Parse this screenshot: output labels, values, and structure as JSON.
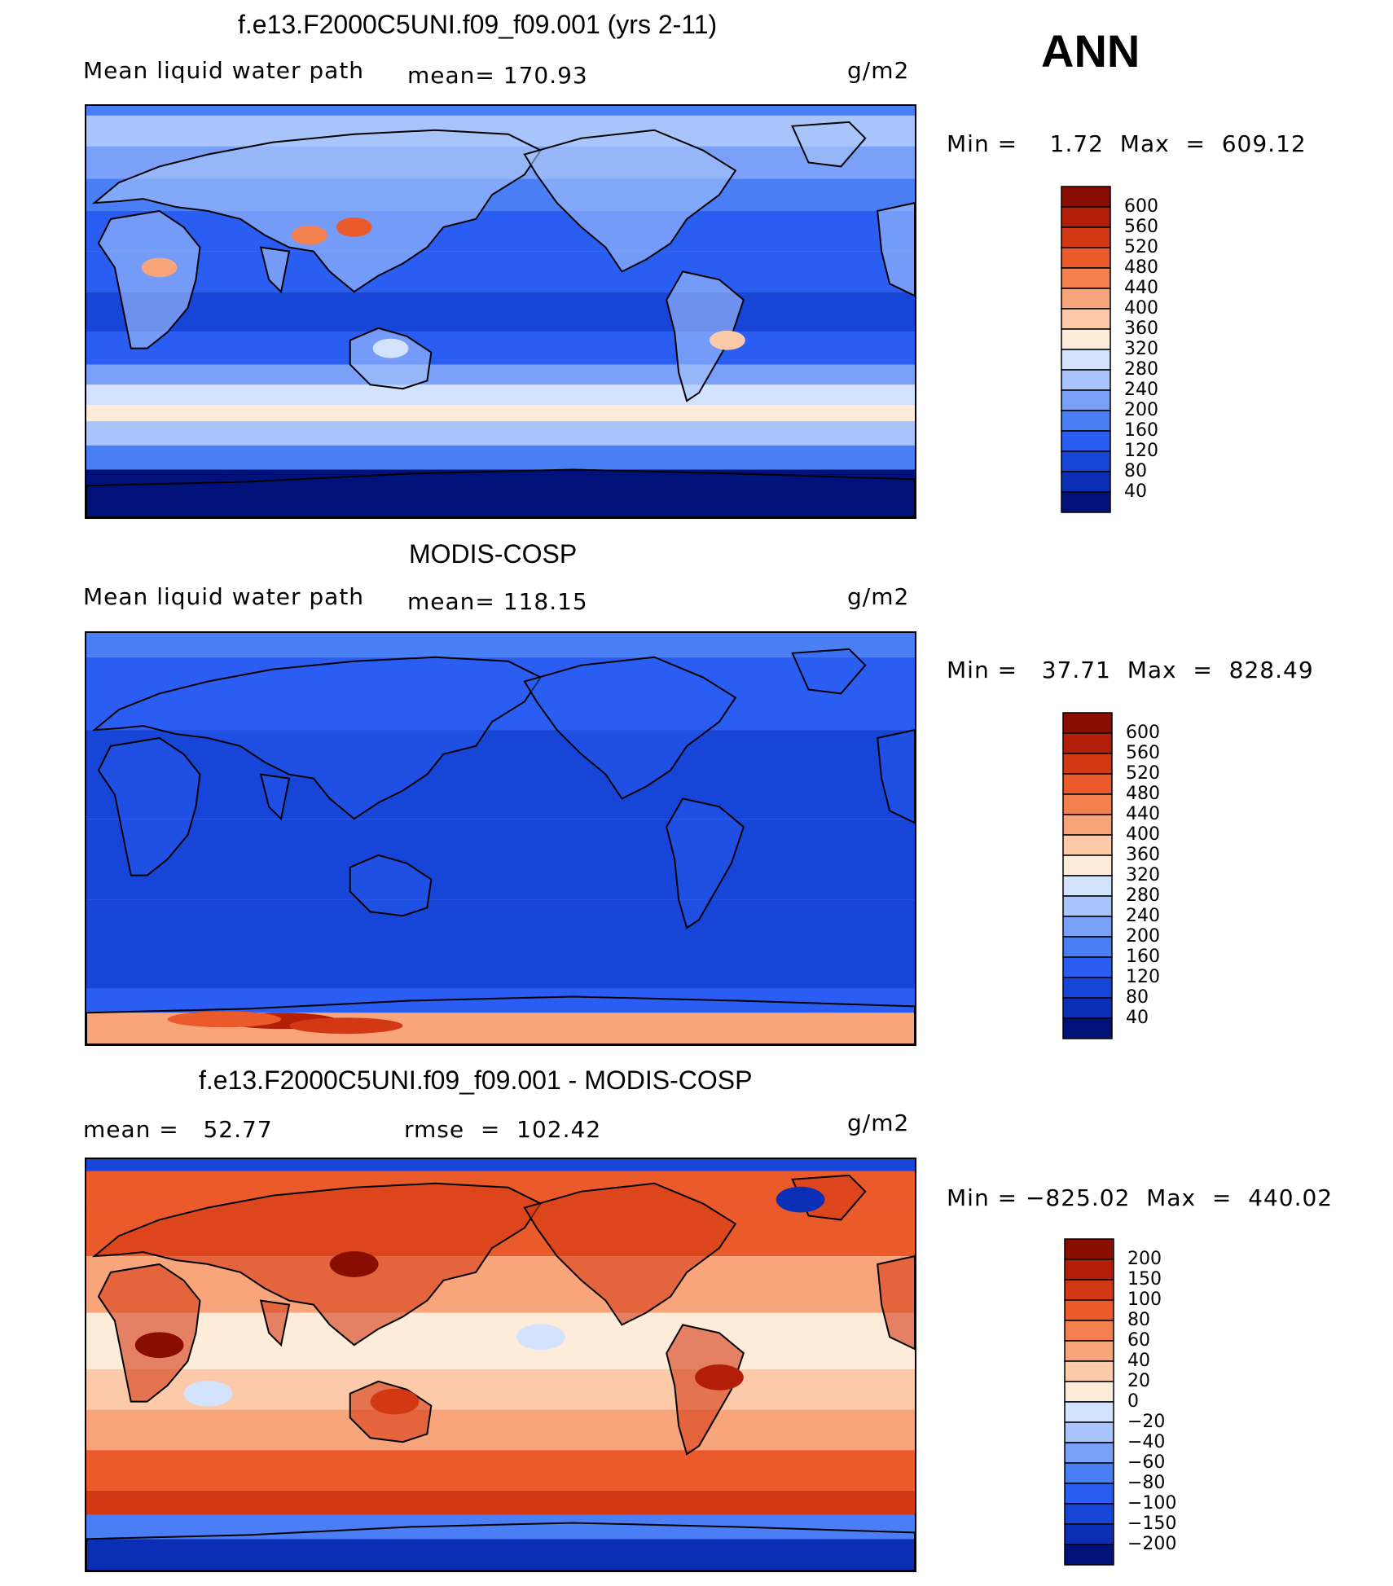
{
  "season": "ANN",
  "palettes": {
    "levels": [
      "#00127a",
      "#0a2fb5",
      "#1645d8",
      "#2a5df2",
      "#4a7ef5",
      "#7aa0f8",
      "#a9c4fb",
      "#d3e3fd",
      "#fdecd9",
      "#fccaa8",
      "#f9a57c",
      "#f4804f",
      "#ea5a2b",
      "#d33814",
      "#b21e07",
      "#8a0d02"
    ],
    "diff": [
      "#00127a",
      "#0a2fb5",
      "#1645d8",
      "#2a5df2",
      "#4a7ef5",
      "#7aa0f8",
      "#a9c4fb",
      "#d3e3fd",
      "#fdecd9",
      "#fccaa8",
      "#f9a57c",
      "#f4804f",
      "#ea5a2b",
      "#d33814",
      "#b21e07",
      "#8a0d02"
    ],
    "coast": "#000000"
  },
  "panels": [
    {
      "title": "f.e13.F2000C5UNI.f09_f09.001 (yrs 2-11)",
      "left_label": "Mean liquid water path",
      "center_label": "mean= 170.93",
      "units": "g/m2",
      "minmax": "Min =    1.72  Max  =  609.12",
      "colorbar_labels": [
        "600",
        "560",
        "520",
        "480",
        "440",
        "400",
        "360",
        "320",
        "280",
        "240",
        "200",
        "160",
        "120",
        "80",
        "40"
      ],
      "field_type": "model"
    },
    {
      "title": "MODIS-COSP",
      "left_label": "Mean liquid water path",
      "center_label": "mean= 118.15",
      "units": "g/m2",
      "minmax": "Min =   37.71  Max  =  828.49",
      "colorbar_labels": [
        "600",
        "560",
        "520",
        "480",
        "440",
        "400",
        "360",
        "320",
        "280",
        "240",
        "200",
        "160",
        "120",
        "80",
        "40"
      ],
      "field_type": "obs"
    },
    {
      "title": "f.e13.F2000C5UNI.f09_f09.001 - MODIS-COSP",
      "left_label": "mean =   52.77",
      "center_label": "rmse  =  102.42",
      "units": "g/m2",
      "minmax": "Min = −825.02  Max  =  440.02",
      "colorbar_labels": [
        "200",
        "150",
        "100",
        "80",
        "60",
        "40",
        "20",
        "0",
        "−20",
        "−40",
        "−60",
        "−80",
        "−100",
        "−150",
        "−200"
      ],
      "field_type": "diff"
    }
  ]
}
